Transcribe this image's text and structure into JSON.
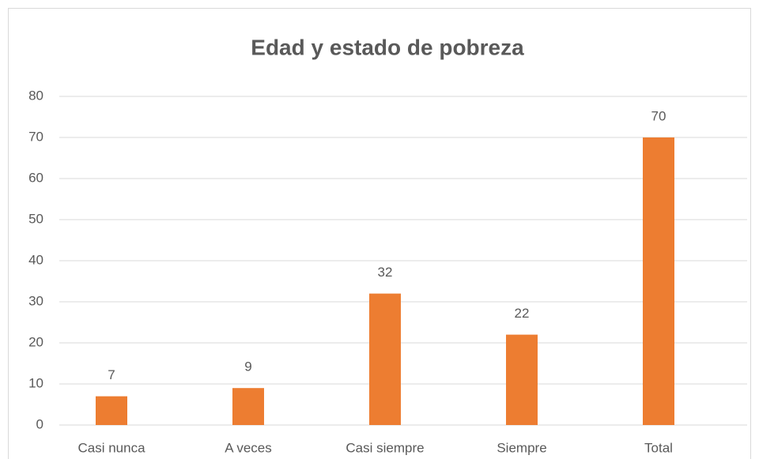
{
  "chart_data": {
    "type": "bar",
    "title": "Edad y estado de pobreza",
    "categories": [
      "Casi nunca",
      "A veces",
      "Casi siempre",
      "Siempre",
      "Total"
    ],
    "values": [
      7,
      9,
      32,
      22,
      70
    ],
    "color": "#ed7d31",
    "ylim": [
      0,
      80
    ],
    "yticks": [
      0,
      10,
      20,
      30,
      40,
      50,
      60,
      70,
      80
    ],
    "grid": true
  }
}
